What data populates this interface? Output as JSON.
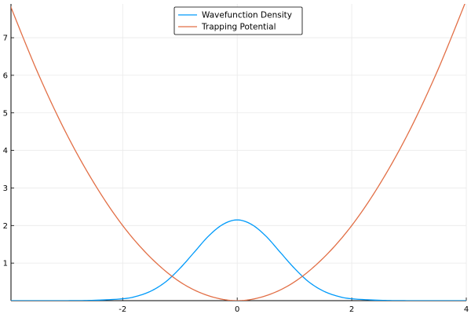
{
  "chart_data": {
    "type": "line",
    "title": "",
    "xlabel": "",
    "ylabel": "",
    "xlim": [
      -3.95,
      4
    ],
    "ylim": [
      0,
      7.9
    ],
    "grid": true,
    "legend_position": "top-center",
    "x_ticks": [
      -2,
      0,
      2,
      4
    ],
    "y_ticks": [
      1,
      2,
      3,
      4,
      5,
      6,
      7
    ],
    "x_tick_labels": [
      "-2",
      "0",
      "2",
      "4"
    ],
    "y_tick_labels": [
      "1",
      "2",
      "3",
      "4",
      "5",
      "6",
      "7"
    ],
    "series": [
      {
        "name": "Wavefunction Density",
        "color": "#009AFA",
        "x": [
          -4,
          -3.5,
          -3,
          -2.5,
          -2,
          -1.75,
          -1.5,
          -1.25,
          -1,
          -0.75,
          -0.5,
          -0.25,
          0,
          0.25,
          0.5,
          0.75,
          1,
          1.25,
          1.5,
          1.75,
          2,
          2.5,
          3,
          3.5,
          4
        ],
        "y": [
          0,
          0,
          0,
          0.01,
          0.05,
          0.12,
          0.26,
          0.5,
          0.86,
          1.29,
          1.72,
          2.03,
          2.15,
          2.03,
          1.72,
          1.29,
          0.86,
          0.5,
          0.26,
          0.12,
          0.05,
          0.01,
          0,
          0,
          0
        ]
      },
      {
        "name": "Trapping Potential",
        "color": "#E26F46",
        "x": [
          -4,
          -3.5,
          -3,
          -2.5,
          -2,
          -1.5,
          -1,
          -0.5,
          0,
          0.5,
          1,
          1.5,
          2,
          2.5,
          3,
          3.5,
          4
        ],
        "y": [
          8,
          6.13,
          4.5,
          3.13,
          2,
          1.13,
          0.5,
          0.13,
          0,
          0.13,
          0.5,
          1.13,
          2,
          3.13,
          4.5,
          6.13,
          8
        ]
      }
    ]
  }
}
